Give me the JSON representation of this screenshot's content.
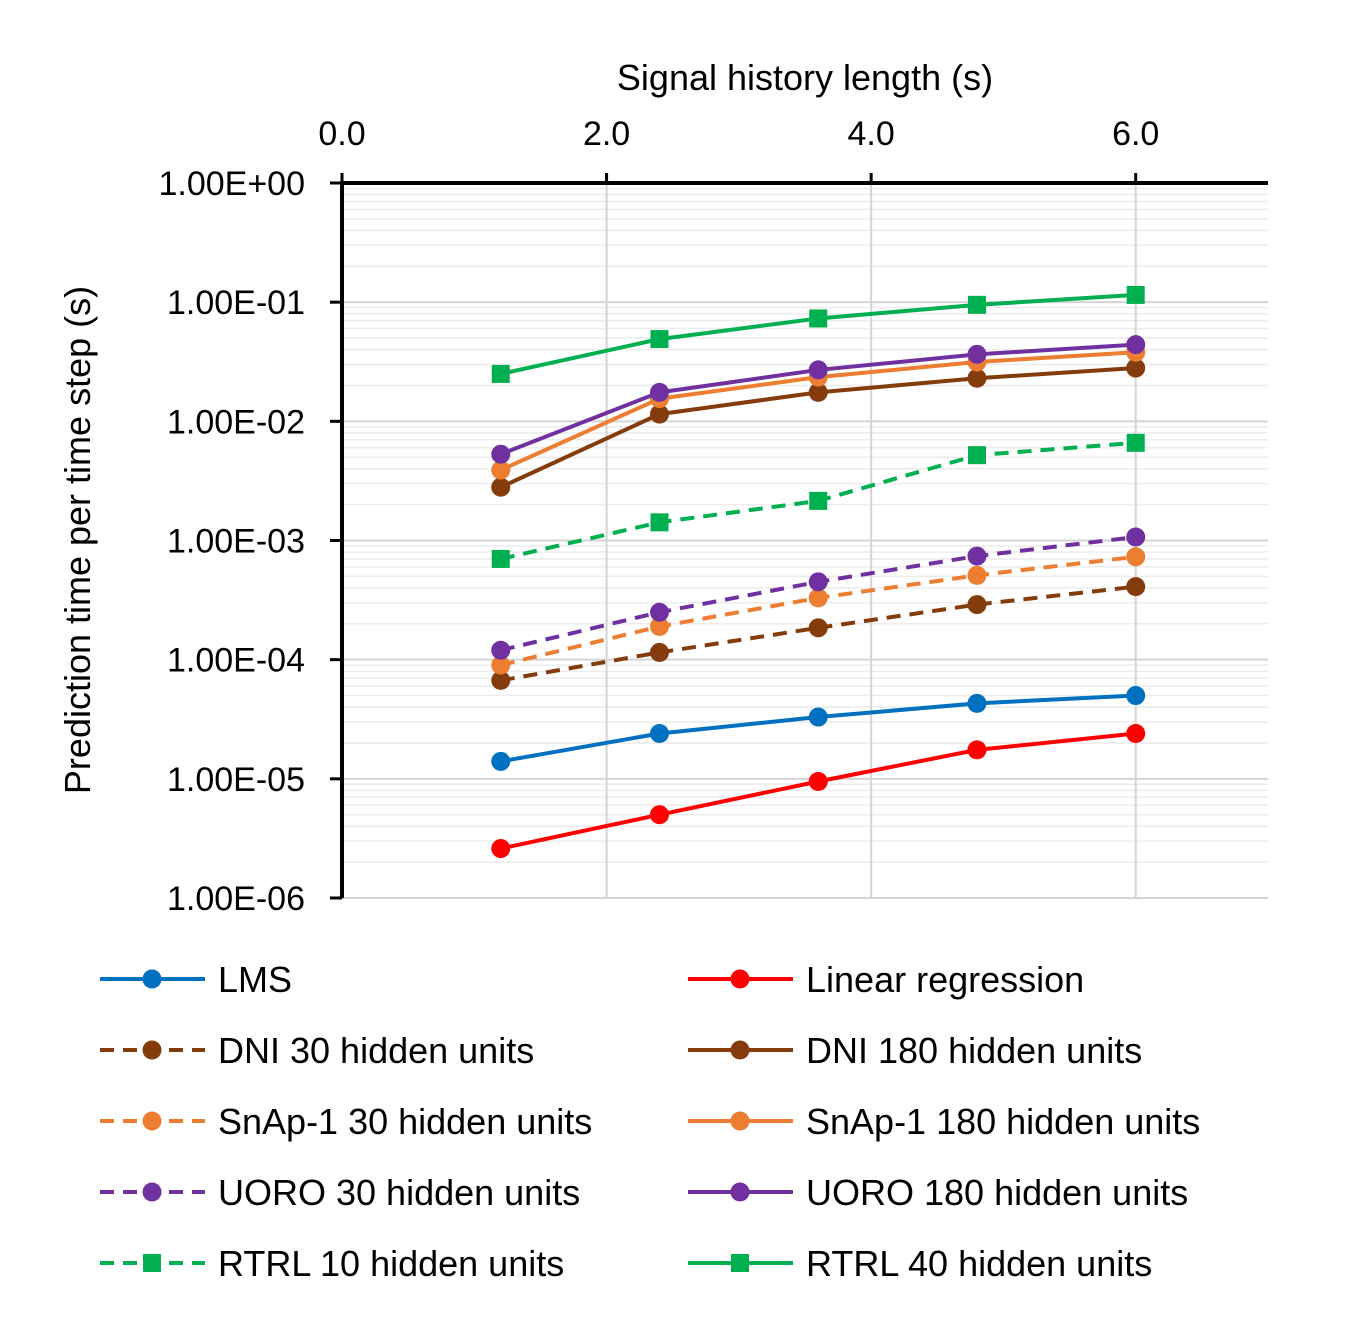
{
  "chart_data": {
    "type": "line",
    "title": "",
    "xlabel": "Signal history length (s)",
    "ylabel": "Prediction time per time step (s)",
    "x_axis_position": "top",
    "xlim": [
      0,
      7
    ],
    "x_tick_values": [
      0,
      2,
      4,
      6
    ],
    "x_tick_labels": [
      "0.0",
      "2.0",
      "4.0",
      "6.0"
    ],
    "y_scale": "log",
    "ylim": [
      1e-06,
      1
    ],
    "y_tick_values": [
      1,
      0.1,
      0.01,
      0.001,
      0.0001,
      1e-05,
      1e-06
    ],
    "y_tick_labels": [
      "1.00E+00",
      "1.00E-01",
      "1.00E-02",
      "1.00E-03",
      "1.00E-04",
      "1.00E-05",
      "1.00E-06"
    ],
    "grid": true,
    "legend_position": "bottom",
    "x": [
      1.2,
      2.4,
      3.6,
      4.8,
      6.0
    ],
    "series": [
      {
        "name": "LMS",
        "color": "#0070c0",
        "dash": "solid",
        "marker": "circle",
        "values": [
          1.4e-05,
          2.4e-05,
          3.3e-05,
          4.3e-05,
          5e-05
        ]
      },
      {
        "name": "Linear regression",
        "color": "#ff0000",
        "dash": "solid",
        "marker": "circle",
        "values": [
          2.6e-06,
          5e-06,
          9.5e-06,
          1.75e-05,
          2.4e-05
        ]
      },
      {
        "name": "DNI 30 hidden units",
        "color": "#843c0c",
        "dash": "dashed",
        "marker": "circle",
        "values": [
          6.7e-05,
          0.000115,
          0.000185,
          0.00029,
          0.00041
        ]
      },
      {
        "name": "DNI 180 hidden units",
        "color": "#843c0c",
        "dash": "solid",
        "marker": "circle",
        "values": [
          0.0028,
          0.0115,
          0.0175,
          0.023,
          0.028
        ]
      },
      {
        "name": "SnAp-1 30 hidden units",
        "color": "#ed7d31",
        "dash": "dashed",
        "marker": "circle",
        "values": [
          9e-05,
          0.00019,
          0.00033,
          0.00051,
          0.00073
        ]
      },
      {
        "name": "SnAp-1 180 hidden units",
        "color": "#ed7d31",
        "dash": "solid",
        "marker": "circle",
        "values": [
          0.0039,
          0.0155,
          0.0235,
          0.0315,
          0.038
        ]
      },
      {
        "name": "UORO 30 hidden units",
        "color": "#7030a0",
        "dash": "dashed",
        "marker": "circle",
        "values": [
          0.00012,
          0.00025,
          0.00045,
          0.00074,
          0.00107
        ]
      },
      {
        "name": "UORO 180 hidden units",
        "color": "#7030a0",
        "dash": "solid",
        "marker": "circle",
        "values": [
          0.0053,
          0.0175,
          0.027,
          0.0365,
          0.044
        ]
      },
      {
        "name": "RTRL 10 hidden units",
        "color": "#00b050",
        "dash": "dashed",
        "marker": "square",
        "values": [
          0.0007,
          0.00142,
          0.00215,
          0.0052,
          0.0066
        ]
      },
      {
        "name": "RTRL 40 hidden units",
        "color": "#00b050",
        "dash": "solid",
        "marker": "square",
        "values": [
          0.025,
          0.049,
          0.073,
          0.095,
          0.115
        ]
      }
    ]
  }
}
